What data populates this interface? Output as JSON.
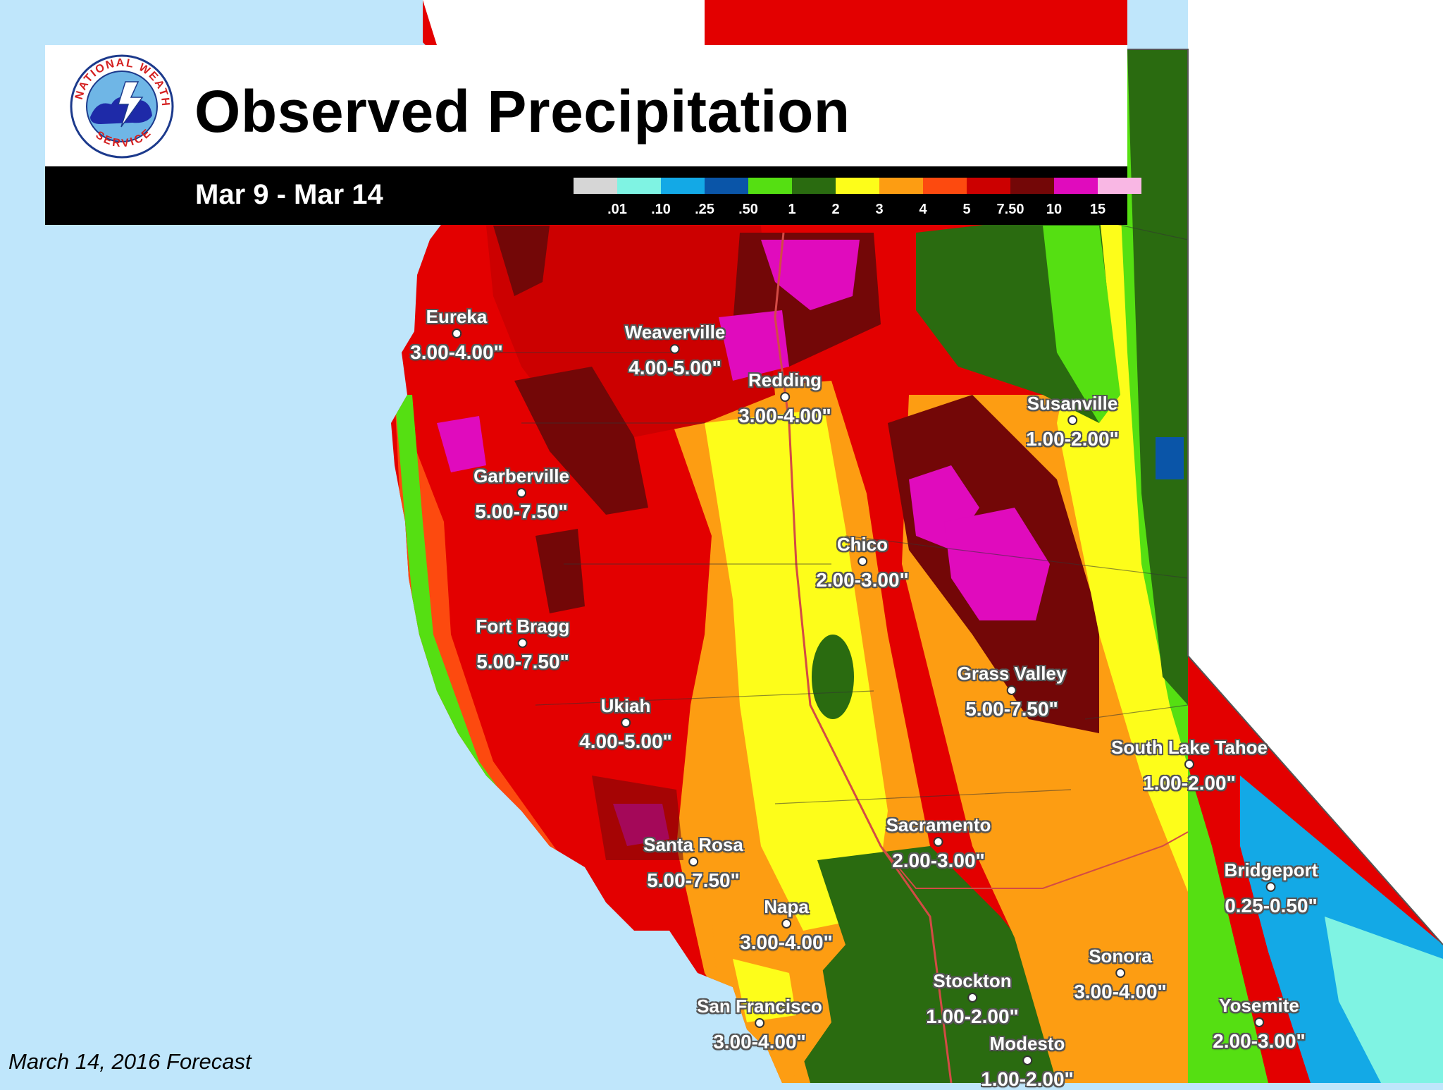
{
  "header": {
    "title": "Observed Precipitation",
    "date_range": "Mar 9 - Mar 14",
    "logo_text": "NATIONAL WEATHER SERVICE"
  },
  "legend": {
    "colors": [
      "#d6d6d6",
      "#7ff3e3",
      "#13a9e6",
      "#0a55a8",
      "#55df12",
      "#2a6b10",
      "#fdfd1a",
      "#fd9d12",
      "#fd4a0f",
      "#cc0000",
      "#730707",
      "#e00bbd",
      "#f9b7e4"
    ],
    "ticks": [
      ".01",
      ".10",
      ".25",
      ".50",
      "1",
      "2",
      "3",
      "4",
      "5",
      "7.50",
      "10",
      "15"
    ]
  },
  "cities": [
    {
      "name": "Eureka",
      "amount": "3.00-4.00\""
    },
    {
      "name": "Weaverville",
      "amount": "4.00-5.00\""
    },
    {
      "name": "Redding",
      "amount": "3.00-4.00\""
    },
    {
      "name": "Susanville",
      "amount": "1.00-2.00\""
    },
    {
      "name": "Garberville",
      "amount": "5.00-7.50\""
    },
    {
      "name": "Chico",
      "amount": "2.00-3.00\""
    },
    {
      "name": "Fort Bragg",
      "amount": "5.00-7.50\""
    },
    {
      "name": "Grass Valley",
      "amount": "5.00-7.50\""
    },
    {
      "name": "Ukiah",
      "amount": "4.00-5.00\""
    },
    {
      "name": "South Lake Tahoe",
      "amount": "1.00-2.00\""
    },
    {
      "name": "Sacramento",
      "amount": "2.00-3.00\""
    },
    {
      "name": "Santa Rosa",
      "amount": "5.00-7.50\""
    },
    {
      "name": "Bridgeport",
      "amount": "0.25-0.50\""
    },
    {
      "name": "Napa",
      "amount": "3.00-4.00\""
    },
    {
      "name": "Sonora",
      "amount": "3.00-4.00\""
    },
    {
      "name": "Stockton",
      "amount": "1.00-2.00\""
    },
    {
      "name": "San Francisco",
      "amount": "3.00-4.00\""
    },
    {
      "name": "Yosemite",
      "amount": "2.00-3.00\""
    },
    {
      "name": "Modesto",
      "amount": "1.00-2.00\""
    }
  ],
  "footer": "March 14, 2016 Forecast"
}
